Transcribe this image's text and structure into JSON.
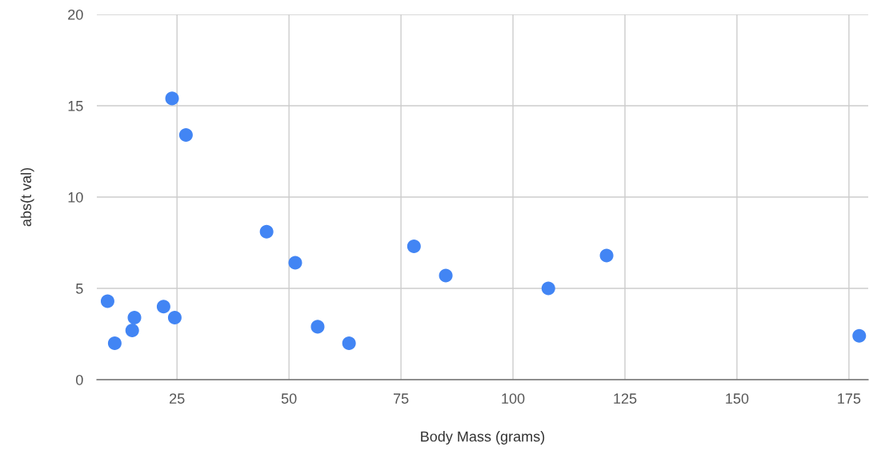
{
  "chart_data": {
    "type": "scatter",
    "xlabel": "Body Mass (grams)",
    "ylabel": "abs(t val)",
    "x": [
      9.5,
      11.1,
      15.0,
      15.5,
      22.0,
      23.9,
      24.5,
      27.0,
      45.0,
      51.4,
      56.4,
      63.4,
      77.9,
      85.0,
      107.9,
      120.9,
      177.3
    ],
    "series": [
      {
        "color": "#4285f4",
        "values": [
          4.3,
          2.0,
          2.7,
          3.4,
          4.0,
          15.4,
          3.4,
          13.4,
          8.1,
          6.4,
          2.9,
          2.0,
          7.3,
          5.7,
          5.0,
          6.8,
          2.4
        ]
      }
    ],
    "xlim": [
      7.1,
      179.3
    ],
    "xticks": [
      25,
      50,
      75,
      100,
      125,
      150,
      175
    ],
    "ylim": [
      0,
      20
    ],
    "yticks": [
      0,
      5,
      10,
      15,
      20
    ],
    "grid": true,
    "marker": "circle",
    "legend": false
  }
}
